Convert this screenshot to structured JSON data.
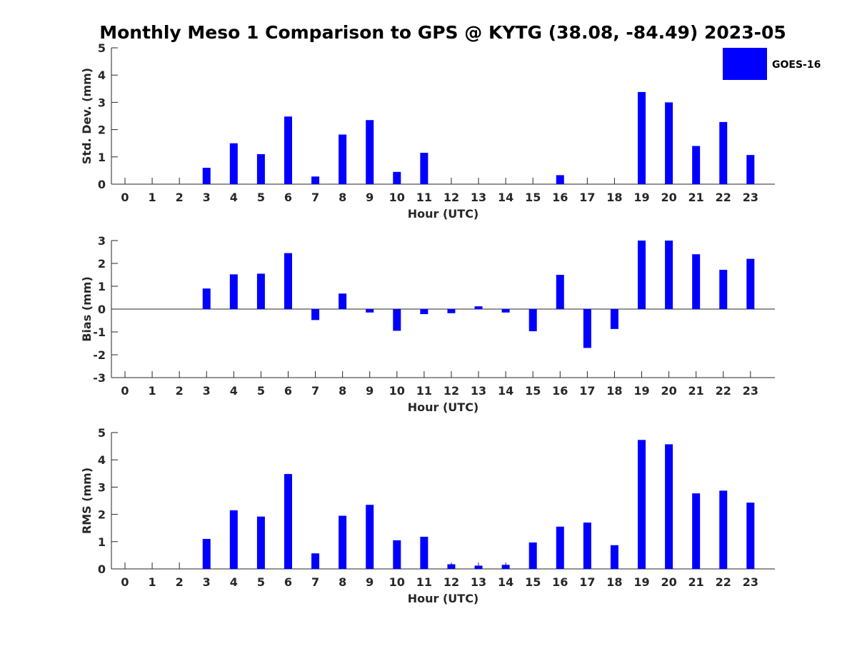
{
  "colors": {
    "bar": "#0000ff",
    "axis": "#262626",
    "background": "#ffffff"
  },
  "chart_data": {
    "type": "bar",
    "title": "Monthly Meso 1 Comparison to GPS @ KYTG (38.08, -84.49) 2023-05",
    "legend": {
      "label": "GOES-16",
      "position": "top-right"
    },
    "categories": [
      "0",
      "1",
      "2",
      "3",
      "4",
      "5",
      "6",
      "7",
      "8",
      "9",
      "10",
      "11",
      "12",
      "13",
      "14",
      "15",
      "16",
      "17",
      "18",
      "19",
      "20",
      "21",
      "22",
      "23"
    ],
    "panels": [
      {
        "name": "std-dev",
        "ylabel": "Std. Dev. (mm)",
        "xlabel": "Hour (UTC)",
        "ylim": [
          0,
          5
        ],
        "yticks": [
          0,
          1,
          2,
          3,
          4,
          5
        ],
        "series": [
          {
            "name": "GOES-16",
            "values": [
              0,
              0,
              0,
              0.6,
              1.5,
              1.1,
              2.48,
              0.28,
              1.82,
              2.35,
              0.45,
              1.15,
              0,
              0,
              0,
              0,
              0.33,
              0,
              0,
              3.38,
              3.0,
              1.4,
              2.28,
              1.07
            ]
          }
        ]
      },
      {
        "name": "bias",
        "ylabel": "Bias (mm)",
        "xlabel": "Hour (UTC)",
        "ylim": [
          -3,
          3
        ],
        "yticks": [
          -3,
          -2,
          -1,
          0,
          1,
          2,
          3
        ],
        "series": [
          {
            "name": "GOES-16",
            "values": [
              0,
              0,
              0,
              0.9,
              1.52,
              1.55,
              2.45,
              -0.48,
              0.68,
              -0.15,
              -0.95,
              -0.22,
              -0.18,
              0.12,
              -0.15,
              -0.97,
              1.5,
              -1.7,
              -0.87,
              3.0,
              3.0,
              2.4,
              1.72,
              2.2
            ]
          }
        ]
      },
      {
        "name": "rms",
        "ylabel": "RMS (mm)",
        "xlabel": "Hour (UTC)",
        "ylim": [
          0,
          5
        ],
        "yticks": [
          0,
          1,
          2,
          3,
          4,
          5
        ],
        "series": [
          {
            "name": "GOES-16",
            "values": [
              0,
              0,
              0,
              1.1,
              2.15,
              1.92,
              3.48,
              0.57,
              1.95,
              2.35,
              1.05,
              1.18,
              0.17,
              0.12,
              0.15,
              0.97,
              1.55,
              1.7,
              0.87,
              4.73,
              4.57,
              2.77,
              2.87,
              2.43
            ]
          }
        ]
      }
    ]
  }
}
